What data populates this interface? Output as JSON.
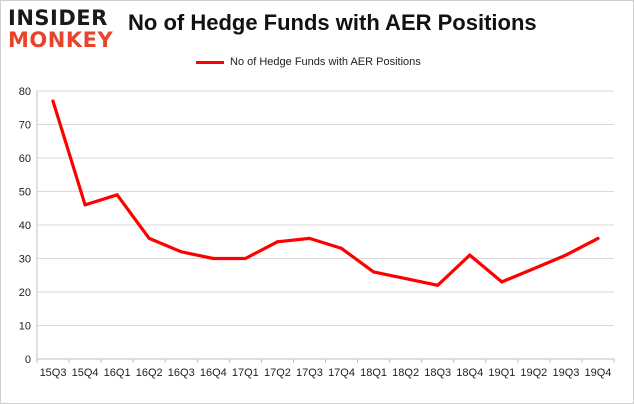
{
  "logo": {
    "line1": "INSIDER",
    "line2": "MONKEY"
  },
  "colors": {
    "series": "#ff0000",
    "grid": "#d9d9d9",
    "axis": "#bfbfbf",
    "logo_accent": "#e8442c"
  },
  "chart_data": {
    "type": "line",
    "title": "No of Hedge Funds with AER Positions",
    "xlabel": "",
    "ylabel": "",
    "ylim": [
      0,
      80
    ],
    "yticks": [
      0,
      10,
      20,
      30,
      40,
      50,
      60,
      70,
      80
    ],
    "grid": true,
    "legend": "top-center",
    "categories": [
      "15Q3",
      "15Q4",
      "16Q1",
      "16Q2",
      "16Q3",
      "16Q4",
      "17Q1",
      "17Q2",
      "17Q3",
      "17Q4",
      "18Q1",
      "18Q2",
      "18Q3",
      "18Q4",
      "19Q1",
      "19Q2",
      "19Q3",
      "19Q4"
    ],
    "series": [
      {
        "name": "No of Hedge Funds with AER Positions",
        "values": [
          77,
          46,
          49,
          36,
          32,
          30,
          30,
          35,
          36,
          33,
          26,
          24,
          22,
          31,
          23,
          27,
          31,
          36
        ]
      }
    ]
  }
}
